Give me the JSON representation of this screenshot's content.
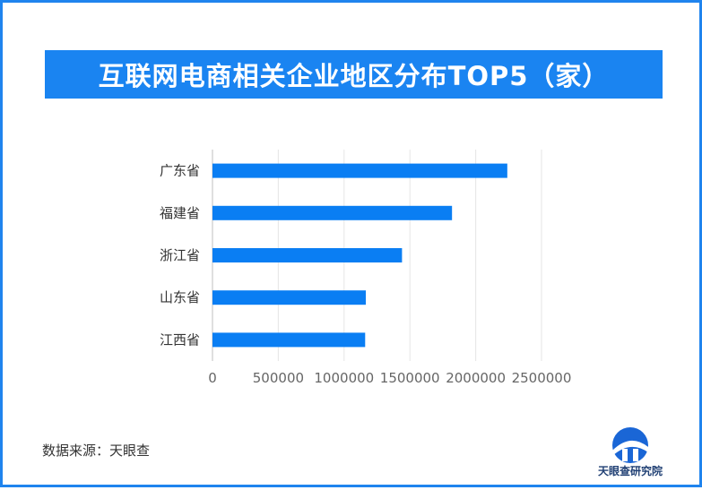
{
  "chart_data": {
    "type": "bar",
    "orientation": "horizontal",
    "title": "互联网电商相关企业地区分布TOP5（家）",
    "categories": [
      "广东省",
      "福建省",
      "浙江省",
      "山东省",
      "江西省"
    ],
    "values": [
      2240000,
      1820000,
      1440000,
      1165000,
      1160000
    ],
    "xlim": [
      0,
      2500000
    ],
    "xticks": [
      "0",
      "500000",
      "1000000",
      "1500000",
      "2000000",
      "2500000"
    ],
    "xlabel": "",
    "ylabel": "",
    "grid": true,
    "bar_color": "#0a7ef3"
  },
  "source": "数据来源：天眼查",
  "logo": {
    "text": "天眼查研究院",
    "icon": "tianyancha-logo-icon"
  },
  "colors": {
    "border": "#1f84ee",
    "banner": "#1a84f1"
  }
}
